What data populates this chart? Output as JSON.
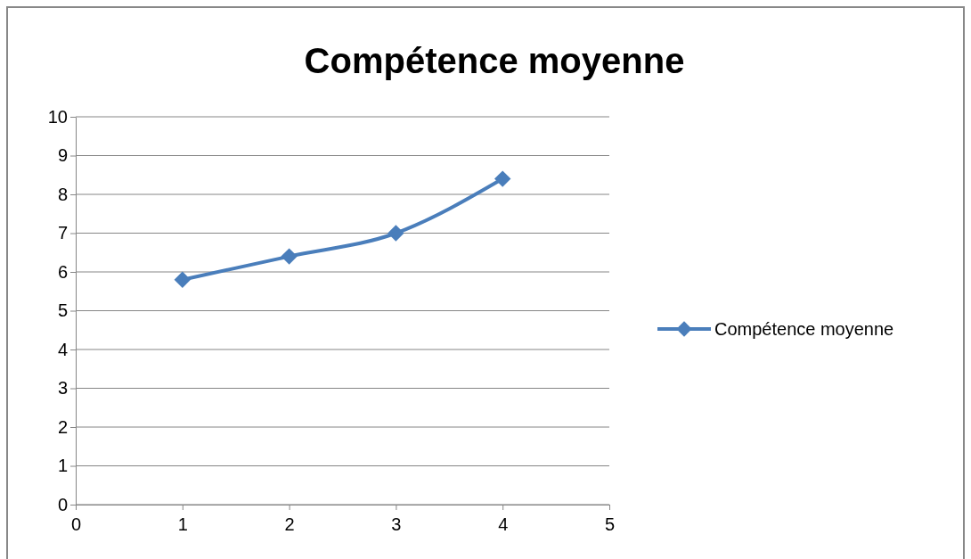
{
  "chart_data": {
    "type": "line",
    "title": "Compétence moyenne",
    "x": [
      1,
      2,
      3,
      4
    ],
    "series": [
      {
        "name": "Compétence moyenne",
        "color": "#4a7ebb",
        "values": [
          5.8,
          6.4,
          7.0,
          8.4
        ]
      }
    ],
    "xlim": [
      0,
      5
    ],
    "xticks": [
      0,
      1,
      2,
      3,
      4,
      5
    ],
    "ylim": [
      0,
      10
    ],
    "yticks": [
      0,
      1,
      2,
      3,
      4,
      5,
      6,
      7,
      8,
      9,
      10
    ],
    "grid": "y",
    "legend": "right",
    "marker": "diamond",
    "line_style": "solid"
  }
}
